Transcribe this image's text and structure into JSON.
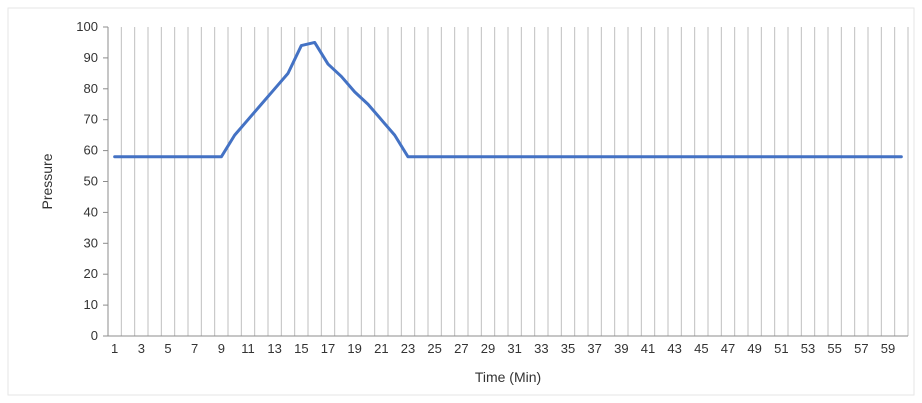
{
  "chart_data": {
    "type": "line",
    "title": "",
    "xlabel": "Time (Min)",
    "ylabel": "Pressure",
    "ylim": [
      0,
      100
    ],
    "yticks": [
      0,
      10,
      20,
      30,
      40,
      50,
      60,
      70,
      80,
      90,
      100
    ],
    "x": [
      1,
      2,
      3,
      4,
      5,
      6,
      7,
      8,
      9,
      10,
      11,
      12,
      13,
      14,
      15,
      16,
      17,
      18,
      19,
      20,
      21,
      22,
      23,
      24,
      25,
      26,
      27,
      28,
      29,
      30,
      31,
      32,
      33,
      34,
      35,
      36,
      37,
      38,
      39,
      40,
      41,
      42,
      43,
      44,
      45,
      46,
      47,
      48,
      49,
      50,
      51,
      52,
      53,
      54,
      55,
      56,
      57,
      58,
      59,
      60
    ],
    "xtick_labels": [
      "1",
      "3",
      "5",
      "7",
      "9",
      "11",
      "13",
      "15",
      "17",
      "19",
      "21",
      "23",
      "25",
      "27",
      "29",
      "31",
      "33",
      "35",
      "37",
      "39",
      "41",
      "43",
      "45",
      "47",
      "49",
      "51",
      "53",
      "55",
      "57",
      "59"
    ],
    "series": [
      {
        "values": [
          58,
          58,
          58,
          58,
          58,
          58,
          58,
          58,
          58,
          65,
          70,
          75,
          80,
          85,
          94,
          95,
          88,
          84,
          79,
          75,
          70,
          65,
          58,
          58,
          58,
          58,
          58,
          58,
          58,
          58,
          58,
          58,
          58,
          58,
          58,
          58,
          58,
          58,
          58,
          58,
          58,
          58,
          58,
          58,
          58,
          58,
          58,
          58,
          58,
          58,
          58,
          58,
          58,
          58,
          58,
          58,
          58,
          58,
          58,
          58
        ],
        "color": "#4472C4"
      }
    ],
    "gridlines": "vertical",
    "gridline_color": "#BFBFBF",
    "legend": "none"
  }
}
